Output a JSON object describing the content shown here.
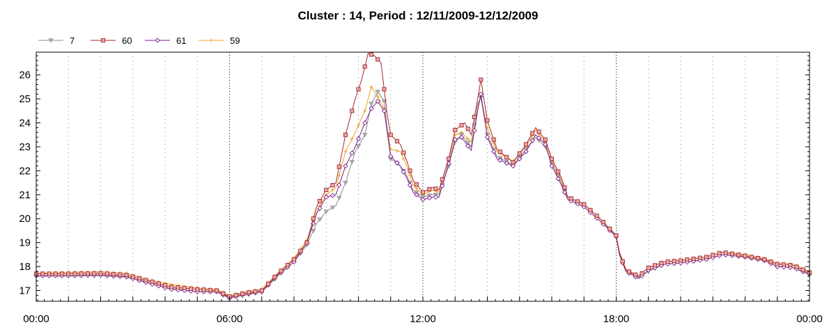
{
  "chart_data": {
    "type": "line",
    "title": "Cluster : 14, Period : 12/11/2009-12/12/2009",
    "xlabel": "",
    "ylabel": "",
    "x_ticks": [
      "00:00",
      "06:00",
      "12:00",
      "18:00",
      "00:00"
    ],
    "x_range_hours": [
      0,
      24
    ],
    "y_ticks": [
      17,
      18,
      19,
      20,
      21,
      22,
      23,
      24,
      25,
      26
    ],
    "ylim": [
      16.55,
      26.95
    ],
    "grid": "vertical dotted",
    "legend_position": "top-left",
    "series": [
      {
        "name": "7",
        "color": "#8c8c8c",
        "marker": "triangle-down",
        "points": [
          [
            0,
            17.6
          ],
          [
            1,
            17.6
          ],
          [
            2,
            17.62
          ],
          [
            2.8,
            17.55
          ],
          [
            3.5,
            17.35
          ],
          [
            4.2,
            17.1
          ],
          [
            5,
            16.95
          ],
          [
            5.6,
            16.95
          ],
          [
            6,
            16.72
          ],
          [
            6.5,
            16.8
          ],
          [
            7,
            16.95
          ],
          [
            7.5,
            17.6
          ],
          [
            8,
            18.2
          ],
          [
            8.4,
            18.9
          ],
          [
            8.7,
            19.8
          ],
          [
            9,
            20.3
          ],
          [
            9.3,
            20.55
          ],
          [
            9.6,
            21.5
          ],
          [
            9.9,
            22.8
          ],
          [
            10.2,
            23.5
          ],
          [
            10.4,
            24.8
          ],
          [
            10.6,
            25.3
          ],
          [
            10.8,
            24.9
          ],
          [
            11,
            22.5
          ],
          [
            11.3,
            22.2
          ],
          [
            11.5,
            21.8
          ],
          [
            11.7,
            21.2
          ],
          [
            12,
            20.9
          ],
          [
            12.3,
            21.0
          ],
          [
            12.5,
            21.0
          ],
          [
            12.8,
            22.2
          ],
          [
            13,
            23.2
          ],
          [
            13.2,
            23.5
          ],
          [
            13.5,
            23.0
          ],
          [
            13.7,
            24.8
          ],
          [
            13.8,
            25.05
          ],
          [
            14,
            23.5
          ],
          [
            14.3,
            22.6
          ],
          [
            14.8,
            22.25
          ],
          [
            15.2,
            22.9
          ],
          [
            15.5,
            23.4
          ],
          [
            15.8,
            23.0
          ],
          [
            16,
            22.3
          ],
          [
            16.3,
            21.5
          ],
          [
            16.5,
            20.8
          ],
          [
            17,
            20.5
          ],
          [
            17.5,
            19.9
          ],
          [
            18,
            19.3
          ],
          [
            18.1,
            18.5
          ],
          [
            18.3,
            17.8
          ],
          [
            18.7,
            17.55
          ],
          [
            19,
            17.8
          ],
          [
            19.5,
            18.1
          ],
          [
            20,
            18.15
          ],
          [
            20.8,
            18.3
          ],
          [
            21.3,
            18.5
          ],
          [
            22,
            18.4
          ],
          [
            22.6,
            18.25
          ],
          [
            23,
            18.0
          ],
          [
            23.5,
            17.95
          ],
          [
            24,
            17.65
          ]
        ]
      },
      {
        "name": "60",
        "color": "#a3262a",
        "marker": "square",
        "points": [
          [
            0,
            17.7
          ],
          [
            1,
            17.7
          ],
          [
            2,
            17.72
          ],
          [
            2.8,
            17.65
          ],
          [
            3.5,
            17.4
          ],
          [
            4.2,
            17.15
          ],
          [
            5,
            17.05
          ],
          [
            5.6,
            17.0
          ],
          [
            6,
            16.75
          ],
          [
            6.5,
            16.9
          ],
          [
            7,
            17.0
          ],
          [
            7.5,
            17.7
          ],
          [
            8,
            18.3
          ],
          [
            8.4,
            19.0
          ],
          [
            8.7,
            20.5
          ],
          [
            9,
            21.2
          ],
          [
            9.3,
            21.5
          ],
          [
            9.6,
            23.5
          ],
          [
            9.9,
            25.0
          ],
          [
            10.1,
            25.8
          ],
          [
            10.3,
            26.9
          ],
          [
            10.5,
            26.8
          ],
          [
            10.7,
            26.5
          ],
          [
            10.9,
            24.3
          ],
          [
            11,
            23.5
          ],
          [
            11.3,
            23.1
          ],
          [
            11.5,
            22.4
          ],
          [
            11.7,
            21.6
          ],
          [
            12,
            21.1
          ],
          [
            12.3,
            21.3
          ],
          [
            12.5,
            21.2
          ],
          [
            12.8,
            22.5
          ],
          [
            13,
            23.7
          ],
          [
            13.3,
            24.0
          ],
          [
            13.5,
            23.5
          ],
          [
            13.7,
            25.0
          ],
          [
            13.8,
            25.8
          ],
          [
            14,
            24.1
          ],
          [
            14.3,
            22.9
          ],
          [
            14.8,
            22.35
          ],
          [
            15.2,
            23.1
          ],
          [
            15.5,
            23.8
          ],
          [
            15.8,
            23.3
          ],
          [
            16,
            22.5
          ],
          [
            16.3,
            21.7
          ],
          [
            16.5,
            20.9
          ],
          [
            17,
            20.6
          ],
          [
            17.5,
            20.0
          ],
          [
            18,
            19.3
          ],
          [
            18.1,
            18.6
          ],
          [
            18.3,
            17.85
          ],
          [
            18.7,
            17.6
          ],
          [
            19,
            17.95
          ],
          [
            19.5,
            18.2
          ],
          [
            20,
            18.25
          ],
          [
            20.8,
            18.4
          ],
          [
            21.3,
            18.6
          ],
          [
            22,
            18.45
          ],
          [
            22.6,
            18.3
          ],
          [
            23,
            18.1
          ],
          [
            23.5,
            18.05
          ],
          [
            24,
            17.75
          ]
        ]
      },
      {
        "name": "61",
        "color": "#7a1a8c",
        "marker": "diamond",
        "points": [
          [
            0,
            17.62
          ],
          [
            1,
            17.62
          ],
          [
            2,
            17.65
          ],
          [
            2.8,
            17.58
          ],
          [
            3.5,
            17.3
          ],
          [
            4.2,
            17.05
          ],
          [
            5,
            16.95
          ],
          [
            5.6,
            16.95
          ],
          [
            6,
            16.68
          ],
          [
            6.5,
            16.85
          ],
          [
            7,
            16.95
          ],
          [
            7.5,
            17.65
          ],
          [
            8,
            18.2
          ],
          [
            8.4,
            19.0
          ],
          [
            8.7,
            20.2
          ],
          [
            9,
            20.9
          ],
          [
            9.3,
            21.0
          ],
          [
            9.6,
            22.2
          ],
          [
            9.9,
            23.0
          ],
          [
            10.2,
            24.0
          ],
          [
            10.4,
            24.6
          ],
          [
            10.6,
            24.9
          ],
          [
            10.8,
            24.5
          ],
          [
            11,
            22.6
          ],
          [
            11.3,
            22.2
          ],
          [
            11.5,
            21.7
          ],
          [
            11.7,
            21.1
          ],
          [
            12,
            20.8
          ],
          [
            12.3,
            20.9
          ],
          [
            12.5,
            20.9
          ],
          [
            12.8,
            22.3
          ],
          [
            13,
            23.3
          ],
          [
            13.2,
            23.4
          ],
          [
            13.5,
            22.85
          ],
          [
            13.7,
            24.5
          ],
          [
            13.8,
            25.2
          ],
          [
            14,
            23.4
          ],
          [
            14.3,
            22.5
          ],
          [
            14.8,
            22.2
          ],
          [
            15.2,
            22.8
          ],
          [
            15.5,
            23.5
          ],
          [
            15.8,
            23.1
          ],
          [
            16,
            22.2
          ],
          [
            16.3,
            21.4
          ],
          [
            16.5,
            20.8
          ],
          [
            17,
            20.5
          ],
          [
            17.5,
            19.9
          ],
          [
            18,
            19.25
          ],
          [
            18.1,
            18.5
          ],
          [
            18.3,
            17.8
          ],
          [
            18.7,
            17.5
          ],
          [
            19,
            17.85
          ],
          [
            19.5,
            18.1
          ],
          [
            20,
            18.15
          ],
          [
            20.8,
            18.3
          ],
          [
            21.3,
            18.5
          ],
          [
            22,
            18.4
          ],
          [
            22.6,
            18.25
          ],
          [
            23,
            18.0
          ],
          [
            23.5,
            17.95
          ],
          [
            24,
            17.7
          ]
        ]
      },
      {
        "name": "59",
        "color": "#f0a020",
        "marker": "plus",
        "points": [
          [
            0,
            17.72
          ],
          [
            1,
            17.75
          ],
          [
            2,
            17.78
          ],
          [
            2.8,
            17.72
          ],
          [
            3.5,
            17.45
          ],
          [
            4.2,
            17.25
          ],
          [
            5,
            17.1
          ],
          [
            5.6,
            17.05
          ],
          [
            6,
            16.78
          ],
          [
            6.5,
            16.95
          ],
          [
            7,
            17.05
          ],
          [
            7.5,
            17.75
          ],
          [
            8,
            18.35
          ],
          [
            8.4,
            19.1
          ],
          [
            8.7,
            20.3
          ],
          [
            9,
            21.0
          ],
          [
            9.3,
            21.3
          ],
          [
            9.6,
            22.8
          ],
          [
            9.9,
            23.6
          ],
          [
            10.2,
            24.5
          ],
          [
            10.4,
            25.5
          ],
          [
            10.6,
            25.1
          ],
          [
            10.8,
            24.6
          ],
          [
            11,
            22.9
          ],
          [
            11.3,
            22.8
          ],
          [
            11.5,
            22.2
          ],
          [
            11.7,
            21.4
          ],
          [
            12,
            21.0
          ],
          [
            12.3,
            21.2
          ],
          [
            12.5,
            21.1
          ],
          [
            12.8,
            22.5
          ],
          [
            13,
            23.5
          ],
          [
            13.2,
            23.6
          ],
          [
            13.5,
            23.2
          ],
          [
            13.7,
            24.7
          ],
          [
            13.8,
            25.1
          ],
          [
            14,
            23.8
          ],
          [
            14.3,
            22.8
          ],
          [
            14.8,
            22.4
          ],
          [
            15.2,
            23.0
          ],
          [
            15.5,
            23.7
          ],
          [
            15.8,
            23.2
          ],
          [
            16,
            22.4
          ],
          [
            16.3,
            21.6
          ],
          [
            16.5,
            20.9
          ],
          [
            17,
            20.6
          ],
          [
            17.5,
            20.0
          ],
          [
            18,
            19.3
          ],
          [
            18.1,
            18.6
          ],
          [
            18.3,
            17.9
          ],
          [
            18.7,
            17.6
          ],
          [
            19,
            17.95
          ],
          [
            19.5,
            18.2
          ],
          [
            20,
            18.25
          ],
          [
            20.8,
            18.4
          ],
          [
            21.3,
            18.6
          ],
          [
            22,
            18.5
          ],
          [
            22.6,
            18.35
          ],
          [
            23,
            18.15
          ],
          [
            23.5,
            18.1
          ],
          [
            24,
            17.8
          ]
        ]
      }
    ]
  }
}
